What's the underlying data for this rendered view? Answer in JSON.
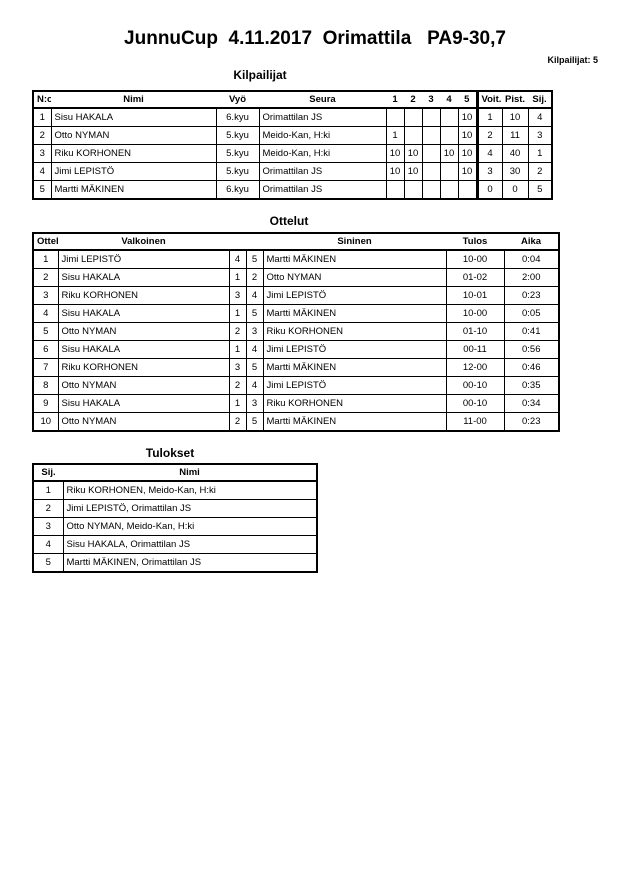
{
  "title": "JunnuCup  4.11.2017  Orimattila   PA9-30,7",
  "competitor_count": "Kilpailijat: 5",
  "competitors": {
    "heading": "Kilpailijat",
    "headers": [
      "N:o",
      "Nimi",
      "Vyö",
      "Seura",
      "1",
      "2",
      "3",
      "4",
      "5",
      "Voit.",
      "Pist.",
      "Sij."
    ],
    "rows": [
      [
        "1",
        "Sisu HAKALA",
        "6.kyu",
        "Orimattilan JS",
        "",
        "",
        "",
        "",
        "10",
        "1",
        "10",
        "4"
      ],
      [
        "2",
        "Otto NYMAN",
        "5.kyu",
        "Meido-Kan, H:ki",
        "1",
        "",
        "",
        "",
        "10",
        "2",
        "11",
        "3"
      ],
      [
        "3",
        "Riku KORHONEN",
        "5.kyu",
        "Meido-Kan, H:ki",
        "10",
        "10",
        "",
        "10",
        "10",
        "4",
        "40",
        "1"
      ],
      [
        "4",
        "Jimi LEPISTÖ",
        "5.kyu",
        "Orimattilan JS",
        "10",
        "10",
        "",
        "",
        "10",
        "3",
        "30",
        "2"
      ],
      [
        "5",
        "Martti MÄKINEN",
        "6.kyu",
        "Orimattilan JS",
        "",
        "",
        "",
        "",
        "",
        "0",
        "0",
        "5"
      ]
    ]
  },
  "matches": {
    "heading": "Ottelut",
    "headers": [
      "Ottelu",
      "Valkoinen",
      "",
      "",
      "Sininen",
      "Tulos",
      "Aika"
    ],
    "rows": [
      [
        "1",
        "Jimi LEPISTÖ",
        "4",
        "5",
        "Martti MÄKINEN",
        "10-00",
        "0:04"
      ],
      [
        "2",
        "Sisu HAKALA",
        "1",
        "2",
        "Otto NYMAN",
        "01-02",
        "2:00"
      ],
      [
        "3",
        "Riku KORHONEN",
        "3",
        "4",
        "Jimi LEPISTÖ",
        "10-01",
        "0:23"
      ],
      [
        "4",
        "Sisu HAKALA",
        "1",
        "5",
        "Martti MÄKINEN",
        "10-00",
        "0:05"
      ],
      [
        "5",
        "Otto NYMAN",
        "2",
        "3",
        "Riku KORHONEN",
        "01-10",
        "0:41"
      ],
      [
        "6",
        "Sisu HAKALA",
        "1",
        "4",
        "Jimi LEPISTÖ",
        "00-11",
        "0:56"
      ],
      [
        "7",
        "Riku KORHONEN",
        "3",
        "5",
        "Martti MÄKINEN",
        "12-00",
        "0:46"
      ],
      [
        "8",
        "Otto NYMAN",
        "2",
        "4",
        "Jimi LEPISTÖ",
        "00-10",
        "0:35"
      ],
      [
        "9",
        "Sisu HAKALA",
        "1",
        "3",
        "Riku KORHONEN",
        "00-10",
        "0:34"
      ],
      [
        "10",
        "Otto NYMAN",
        "2",
        "5",
        "Martti MÄKINEN",
        "11-00",
        "0:23"
      ]
    ]
  },
  "results": {
    "heading": "Tulokset",
    "headers": [
      "Sij.",
      "Nimi"
    ],
    "rows": [
      [
        "1",
        "Riku KORHONEN, Meido-Kan, H:ki"
      ],
      [
        "2",
        "Jimi LEPISTÖ, Orimattilan JS"
      ],
      [
        "3",
        "Otto NYMAN, Meido-Kan, H:ki"
      ],
      [
        "4",
        "Sisu HAKALA, Orimattilan JS"
      ],
      [
        "5",
        "Martti MÄKINEN, Orimattilan JS"
      ]
    ]
  }
}
